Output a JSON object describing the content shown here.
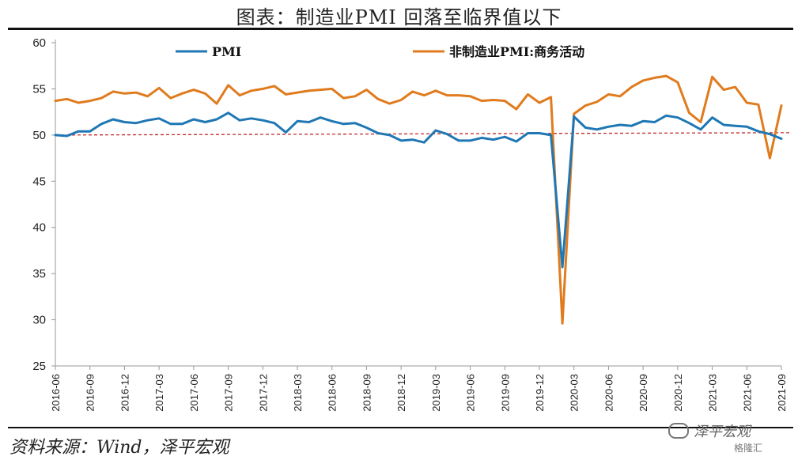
{
  "title": "图表：制造业PMI 回落至临界值以下",
  "source": "资料来源：Wind，泽平宏观",
  "watermark": "泽平宏观",
  "watermark_logo": "格隆汇",
  "colors": {
    "pmi": "#1f77b4",
    "non_mfg": "#e07b1e",
    "threshold": "#c0282a"
  },
  "chart_data": {
    "type": "line",
    "x": [
      "2016-06",
      "2016-07",
      "2016-08",
      "2016-09",
      "2016-10",
      "2016-11",
      "2016-12",
      "2017-01",
      "2017-02",
      "2017-03",
      "2017-04",
      "2017-05",
      "2017-06",
      "2017-07",
      "2017-08",
      "2017-09",
      "2017-10",
      "2017-11",
      "2017-12",
      "2018-01",
      "2018-02",
      "2018-03",
      "2018-04",
      "2018-05",
      "2018-06",
      "2018-07",
      "2018-08",
      "2018-09",
      "2018-10",
      "2018-11",
      "2018-12",
      "2019-01",
      "2019-02",
      "2019-03",
      "2019-04",
      "2019-05",
      "2019-06",
      "2019-07",
      "2019-08",
      "2019-09",
      "2019-10",
      "2019-11",
      "2019-12",
      "2020-01",
      "2020-02",
      "2020-03",
      "2020-04",
      "2020-05",
      "2020-06",
      "2020-07",
      "2020-08",
      "2020-09",
      "2020-10",
      "2020-11",
      "2020-12",
      "2021-01",
      "2021-02",
      "2021-03",
      "2021-04",
      "2021-05",
      "2021-06",
      "2021-07",
      "2021-08",
      "2021-09"
    ],
    "xticks": [
      "2016-06",
      "2016-09",
      "2016-12",
      "2017-03",
      "2017-06",
      "2017-09",
      "2017-12",
      "2018-03",
      "2018-06",
      "2018-09",
      "2018-12",
      "2019-03",
      "2019-06",
      "2019-09",
      "2019-12",
      "2020-03",
      "2020-06",
      "2020-09",
      "2020-12",
      "2021-03",
      "2021-06",
      "2021-09"
    ],
    "series": [
      {
        "name": "PMI",
        "values": [
          50.0,
          49.9,
          50.4,
          50.4,
          51.2,
          51.7,
          51.4,
          51.3,
          51.6,
          51.8,
          51.2,
          51.2,
          51.7,
          51.4,
          51.7,
          52.4,
          51.6,
          51.8,
          51.6,
          51.3,
          50.3,
          51.5,
          51.4,
          51.9,
          51.5,
          51.2,
          51.3,
          50.8,
          50.2,
          50.0,
          49.4,
          49.5,
          49.2,
          50.5,
          50.1,
          49.4,
          49.4,
          49.7,
          49.5,
          49.8,
          49.3,
          50.2,
          50.2,
          50.0,
          35.7,
          52.0,
          50.8,
          50.6,
          50.9,
          51.1,
          51.0,
          51.5,
          51.4,
          52.1,
          51.9,
          51.3,
          50.6,
          51.9,
          51.1,
          51.0,
          50.9,
          50.4,
          50.1,
          49.6
        ]
      },
      {
        "name": "非制造业PMI:商务活动",
        "values": [
          53.7,
          53.9,
          53.5,
          53.7,
          54.0,
          54.7,
          54.5,
          54.6,
          54.2,
          55.1,
          54.0,
          54.5,
          54.9,
          54.5,
          53.4,
          55.4,
          54.3,
          54.8,
          55.0,
          55.3,
          54.4,
          54.6,
          54.8,
          54.9,
          55.0,
          54.0,
          54.2,
          54.9,
          53.9,
          53.4,
          53.8,
          54.7,
          54.3,
          54.8,
          54.3,
          54.3,
          54.2,
          53.7,
          53.8,
          53.7,
          52.8,
          54.4,
          53.5,
          54.1,
          29.6,
          52.3,
          53.2,
          53.6,
          54.4,
          54.2,
          55.2,
          55.9,
          56.2,
          56.4,
          55.7,
          52.4,
          51.4,
          56.3,
          54.9,
          55.2,
          53.5,
          53.3,
          47.5,
          53.2
        ]
      }
    ],
    "threshold": 50,
    "ylim": [
      25,
      60
    ],
    "yticks": [
      25,
      30,
      35,
      40,
      45,
      50,
      55,
      60
    ],
    "legend": "top"
  }
}
